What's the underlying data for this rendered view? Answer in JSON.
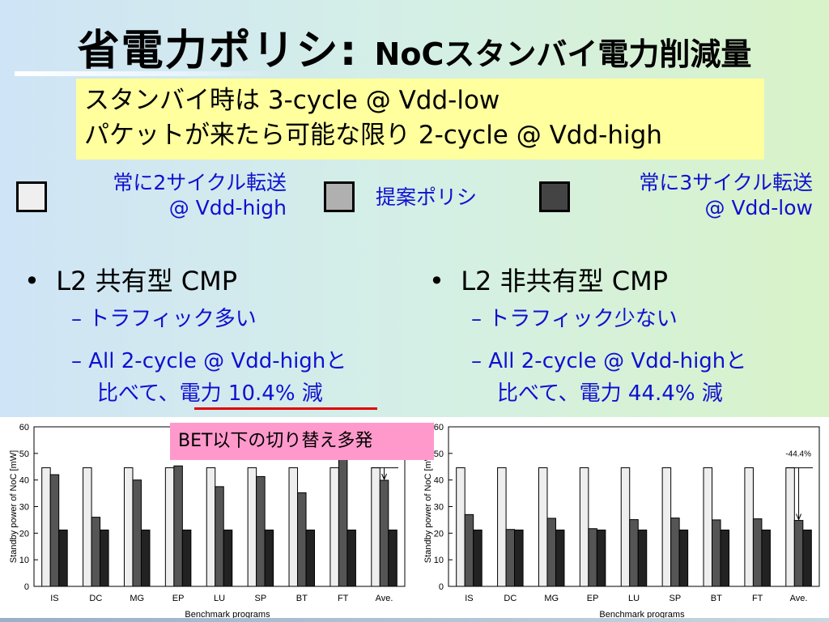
{
  "title": {
    "main": "省電力ポリシ: ",
    "sub": "NoCスタンバイ電力削減量"
  },
  "highlight": {
    "line1": "スタンバイ時は 3-cycle @ Vdd-low",
    "line2": "パケットが来たら可能な限り 2-cycle @ Vdd-high"
  },
  "legend": [
    {
      "label1": "常に2サイクル転送",
      "label2": "@ Vdd-high",
      "color": "#eeeeee"
    },
    {
      "label1": "提案ポリシ",
      "label2": "",
      "color": "#aaaaaa"
    },
    {
      "label1": "常に3サイクル転送",
      "label2": "@ Vdd-low",
      "color": "#444444"
    }
  ],
  "left": {
    "heading": "L2 共有型 CMP",
    "item1": "トラフィック多い",
    "item2a": "All 2-cycle @ Vdd-highと",
    "item2b": "比べて、電力 10.4% 減"
  },
  "right": {
    "heading": "L2 非共有型 CMP",
    "item1": "トラフィック少ない",
    "item2a": "All 2-cycle @ Vdd-highと",
    "item2b": "比べて、電力 44.4% 減"
  },
  "callout": "BET以下の切り替え多発",
  "colors": {
    "light": "#eeeeee",
    "mid": "#555555",
    "dark": "#222222",
    "legend_text": "#1010d0"
  },
  "chart_data": [
    {
      "type": "bar",
      "categories": [
        "IS",
        "DC",
        "MG",
        "EP",
        "LU",
        "SP",
        "BT",
        "FT",
        "Ave."
      ],
      "series": [
        {
          "values": [
            44.6,
            44.6,
            44.6,
            44.6,
            44.6,
            44.6,
            44.6,
            44.6,
            44.6
          ]
        },
        {
          "values": [
            42,
            26,
            40,
            45.3,
            37.5,
            41.3,
            35.2,
            49,
            39.9
          ]
        },
        {
          "values": [
            21.2,
            21.2,
            21.2,
            21.2,
            21.2,
            21.2,
            21.2,
            21.2,
            21.2
          ]
        }
      ],
      "xlabel": "Benchmark programs",
      "ylabel": "Standby power of NoC [mW]",
      "ylim": [
        0,
        60
      ],
      "yticks": [
        0,
        10,
        20,
        30,
        40,
        50,
        60
      ],
      "annotation": ""
    },
    {
      "type": "bar",
      "categories": [
        "IS",
        "DC",
        "MG",
        "EP",
        "LU",
        "SP",
        "BT",
        "FT",
        "Ave."
      ],
      "series": [
        {
          "values": [
            44.6,
            44.6,
            44.6,
            44.6,
            44.6,
            44.6,
            44.6,
            44.6,
            44.6
          ]
        },
        {
          "values": [
            27,
            21.4,
            25.6,
            21.7,
            25.1,
            25.7,
            25,
            25.4,
            24.8
          ]
        },
        {
          "values": [
            21.2,
            21.2,
            21.2,
            21.2,
            21.2,
            21.2,
            21.2,
            21.2,
            21.2
          ]
        }
      ],
      "xlabel": "Benchmark programs",
      "ylabel": "Standby power of NoC [mW]",
      "ylim": [
        0,
        60
      ],
      "yticks": [
        0,
        10,
        20,
        30,
        40,
        50,
        60
      ],
      "annotation": "-44.4%"
    }
  ]
}
